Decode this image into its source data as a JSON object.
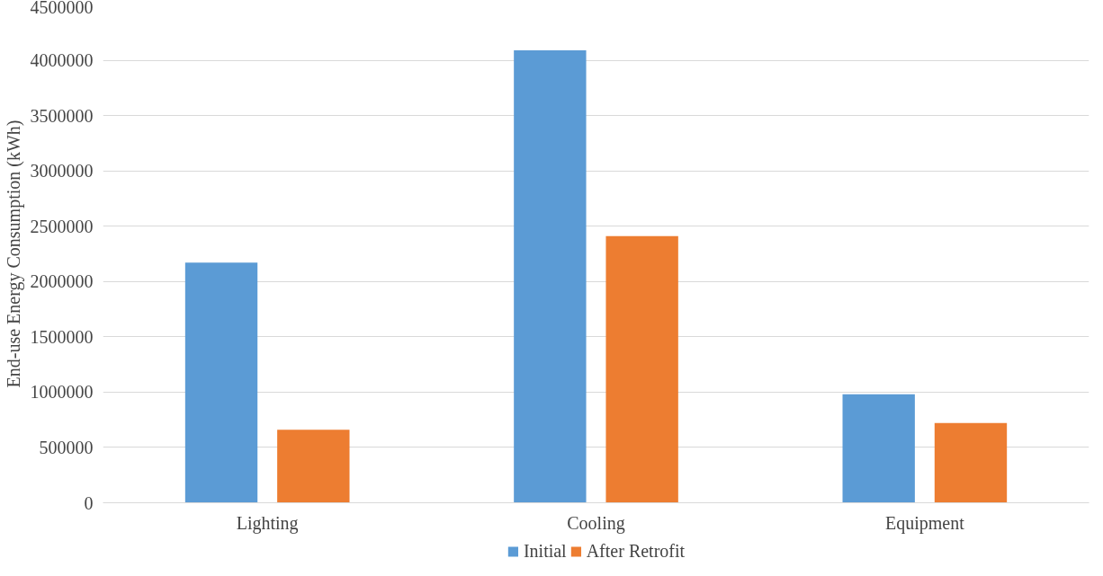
{
  "chart_data": {
    "type": "bar",
    "ylabel": "End-use Energy Consumption (kWh)",
    "categories": [
      "Lighting",
      "Cooling",
      "Equipment"
    ],
    "series": [
      {
        "name": "Initial",
        "color": "#5b9bd5",
        "values": [
          2170000,
          4090000,
          980000
        ]
      },
      {
        "name": "After Retrofit",
        "color": "#ed7d31",
        "values": [
          660000,
          2410000,
          720000
        ]
      }
    ],
    "ylim": [
      0,
      4500000
    ],
    "yticks": [
      0,
      500000,
      1000000,
      1500000,
      2000000,
      2500000,
      3000000,
      3500000,
      4000000,
      4500000
    ],
    "grid": "y",
    "legend": "bottom"
  }
}
